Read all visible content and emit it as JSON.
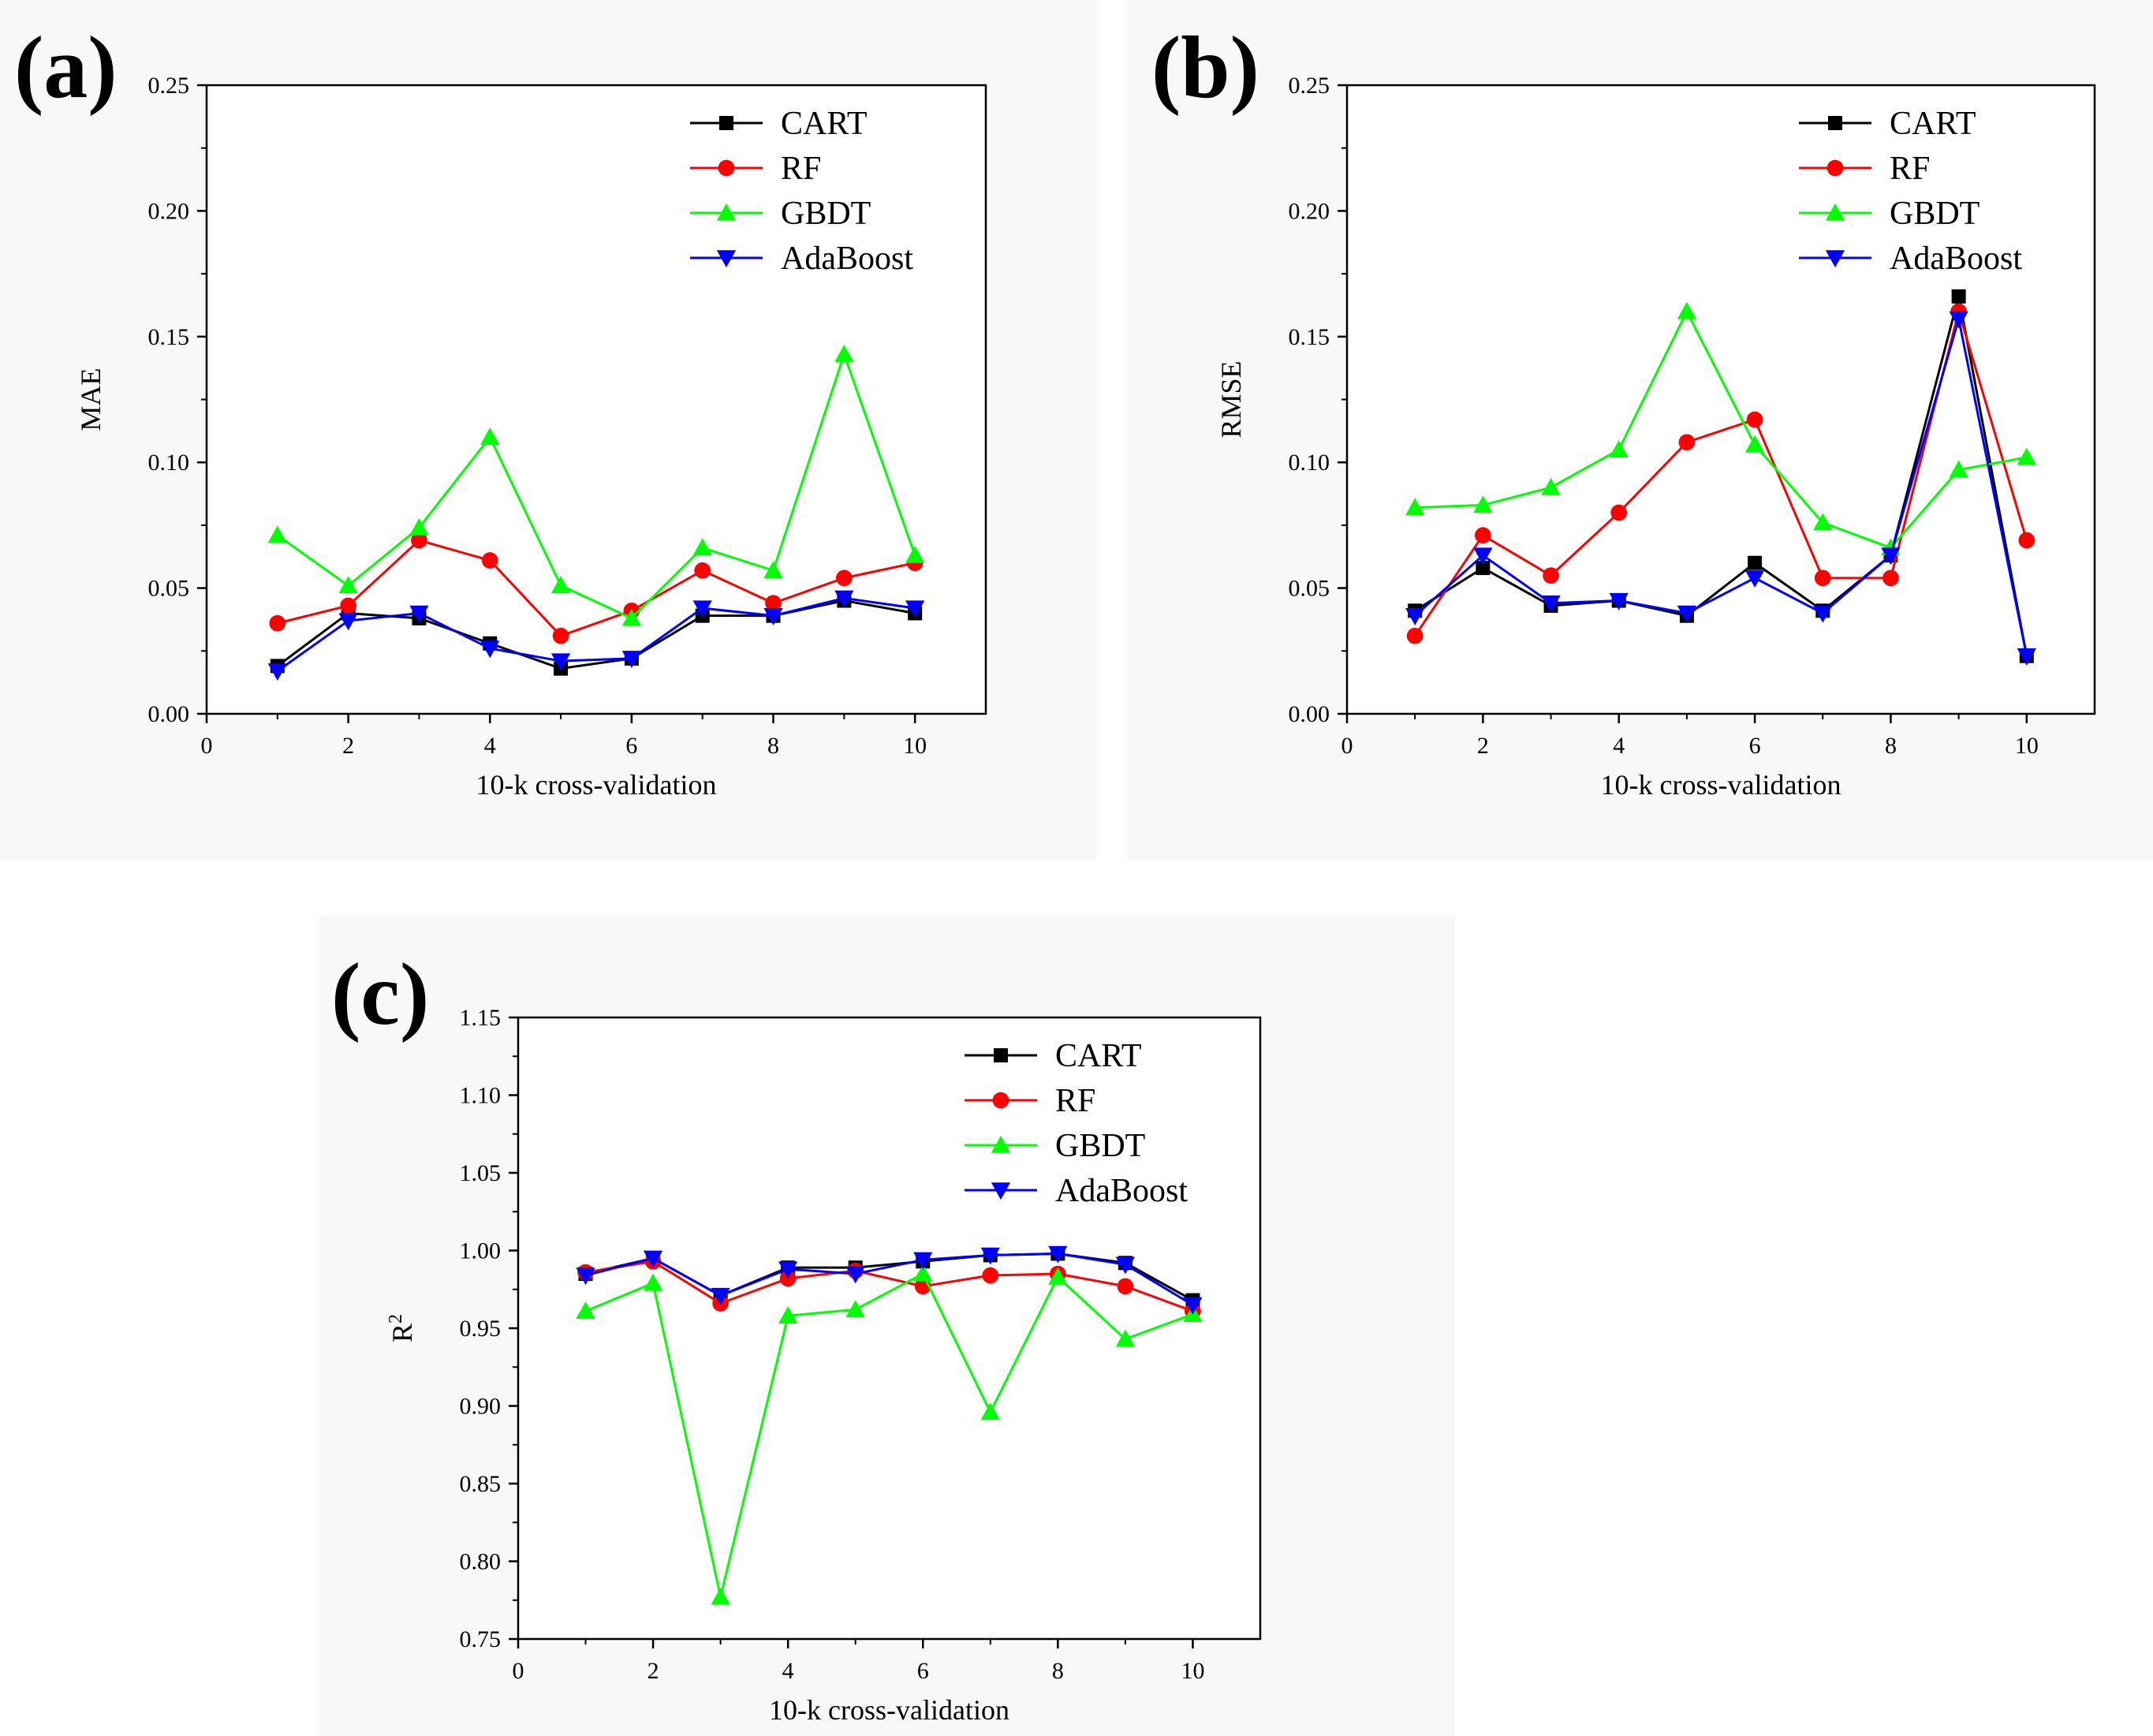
{
  "colors": {
    "CART": "#000000",
    "RF": "#ff0000",
    "GBDT": "#00ff00",
    "AdaBoost": "#0000ff",
    "background": "#ffffff",
    "panel_background": "#f8f8f8"
  },
  "chart_data": [
    {
      "id": "a",
      "panel_label": "(a)",
      "type": "line",
      "title": "",
      "xlabel": "10-k cross-validation",
      "ylabel": "MAE",
      "ylabel_sup": "",
      "xlim": [
        0,
        11
      ],
      "ylim": [
        0,
        0.25
      ],
      "xticks": [
        0,
        2,
        4,
        6,
        8,
        10
      ],
      "yticks": [
        0,
        0.05,
        0.1,
        0.15,
        0.2,
        0.25
      ],
      "ytick_labels": [
        "0.00",
        "0.05",
        "0.10",
        "0.15",
        "0.20",
        "0.25"
      ],
      "grid": false,
      "legend": "top-right",
      "x": [
        1,
        2,
        3,
        4,
        5,
        6,
        7,
        8,
        9,
        10
      ],
      "series": [
        {
          "name": "CART",
          "marker": "square",
          "values": [
            0.019,
            0.04,
            0.038,
            0.028,
            0.018,
            0.022,
            0.039,
            0.039,
            0.045,
            0.04
          ]
        },
        {
          "name": "RF",
          "marker": "circle",
          "values": [
            0.036,
            0.043,
            0.069,
            0.061,
            0.031,
            0.041,
            0.057,
            0.044,
            0.054,
            0.06
          ]
        },
        {
          "name": "GBDT",
          "marker": "triangle-up",
          "values": [
            0.071,
            0.051,
            0.074,
            0.11,
            0.051,
            0.038,
            0.066,
            0.057,
            0.143,
            0.063
          ]
        },
        {
          "name": "AdaBoost",
          "marker": "triangle-down",
          "values": [
            0.017,
            0.037,
            0.04,
            0.026,
            0.021,
            0.022,
            0.042,
            0.039,
            0.046,
            0.042
          ]
        }
      ]
    },
    {
      "id": "b",
      "panel_label": "(b)",
      "type": "line",
      "title": "",
      "xlabel": "10-k cross-validation",
      "ylabel": "RMSE",
      "ylabel_sup": "",
      "xlim": [
        0,
        11
      ],
      "ylim": [
        0,
        0.25
      ],
      "xticks": [
        0,
        2,
        4,
        6,
        8,
        10
      ],
      "yticks": [
        0,
        0.05,
        0.1,
        0.15,
        0.2,
        0.25
      ],
      "ytick_labels": [
        "0.00",
        "0.05",
        "0.10",
        "0.15",
        "0.20",
        "0.25"
      ],
      "grid": false,
      "legend": "top-right",
      "x": [
        1,
        2,
        3,
        4,
        5,
        6,
        7,
        8,
        9,
        10
      ],
      "series": [
        {
          "name": "CART",
          "marker": "square",
          "values": [
            0.041,
            0.058,
            0.043,
            0.045,
            0.039,
            0.06,
            0.041,
            0.063,
            0.166,
            0.023
          ]
        },
        {
          "name": "RF",
          "marker": "circle",
          "values": [
            0.031,
            0.071,
            0.055,
            0.08,
            0.108,
            0.117,
            0.054,
            0.054,
            0.16,
            0.069
          ]
        },
        {
          "name": "GBDT",
          "marker": "triangle-up",
          "values": [
            0.082,
            0.083,
            0.09,
            0.105,
            0.16,
            0.107,
            0.076,
            0.066,
            0.097,
            0.102
          ]
        },
        {
          "name": "AdaBoost",
          "marker": "triangle-down",
          "values": [
            0.039,
            0.063,
            0.044,
            0.045,
            0.04,
            0.054,
            0.04,
            0.063,
            0.157,
            0.023
          ]
        }
      ]
    },
    {
      "id": "c",
      "panel_label": "(c)",
      "type": "line",
      "title": "",
      "xlabel": "10-k cross-validation",
      "ylabel": "R",
      "ylabel_sup": "2",
      "xlim": [
        0,
        11
      ],
      "ylim": [
        0.75,
        1.15
      ],
      "xticks": [
        0,
        2,
        4,
        6,
        8,
        10
      ],
      "yticks": [
        0.75,
        0.8,
        0.85,
        0.9,
        0.95,
        1.0,
        1.05,
        1.1,
        1.15
      ],
      "ytick_labels": [
        "0.75",
        "0.80",
        "0.85",
        "0.90",
        "0.95",
        "1.00",
        "1.05",
        "1.10",
        "1.15"
      ],
      "grid": false,
      "legend": "top-right",
      "x": [
        1,
        2,
        3,
        4,
        5,
        6,
        7,
        8,
        9,
        10
      ],
      "series": [
        {
          "name": "CART",
          "marker": "square",
          "values": [
            0.985,
            0.995,
            0.971,
            0.989,
            0.989,
            0.993,
            0.997,
            0.998,
            0.992,
            0.968
          ]
        },
        {
          "name": "RF",
          "marker": "circle",
          "values": [
            0.986,
            0.993,
            0.966,
            0.982,
            0.987,
            0.977,
            0.984,
            0.985,
            0.977,
            0.961
          ]
        },
        {
          "name": "GBDT",
          "marker": "triangle-up",
          "values": [
            0.961,
            0.979,
            0.777,
            0.958,
            0.962,
            0.985,
            0.896,
            0.983,
            0.943,
            0.959
          ]
        },
        {
          "name": "AdaBoost",
          "marker": "triangle-down",
          "values": [
            0.984,
            0.995,
            0.971,
            0.988,
            0.985,
            0.994,
            0.997,
            0.998,
            0.991,
            0.965
          ]
        }
      ]
    }
  ]
}
